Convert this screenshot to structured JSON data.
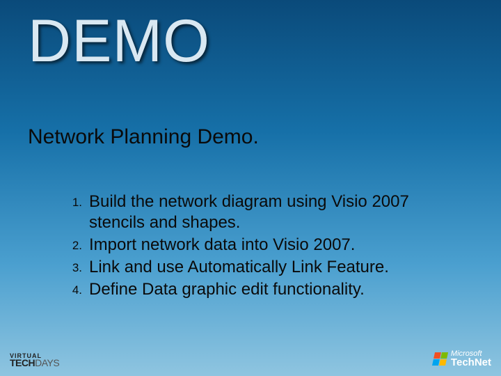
{
  "slide": {
    "title": "DEMO",
    "subtitle": "Network Planning Demo.",
    "title_color": "#d9e8f2",
    "text_color": "#0a0a0a",
    "background_gradient": [
      "#0a4a7a",
      "#1670a8",
      "#4a9fcf",
      "#8fc5e0"
    ],
    "title_fontsize": 86,
    "subtitle_fontsize": 30,
    "list_fontsize": 24,
    "list_number_fontsize": 17,
    "items": [
      {
        "num": "1.",
        "text": "Build the network diagram using Visio 2007 stencils and shapes."
      },
      {
        "num": "2.",
        "text": "Import network data into Visio 2007."
      },
      {
        "num": "3.",
        "text": "Link and use Automatically Link Feature."
      },
      {
        "num": "4.",
        "text": "Define Data graphic edit functionality."
      }
    ]
  },
  "footer": {
    "left": {
      "line1": "VIRTUAL",
      "line2_a": "TECH",
      "line2_b": "DAYS"
    },
    "right": {
      "brand": "Microsoft",
      "product": "TechNet",
      "flag_colors": {
        "tl": "#f25022",
        "tr": "#7fba00",
        "bl": "#00a4ef",
        "br": "#ffb900"
      }
    }
  }
}
